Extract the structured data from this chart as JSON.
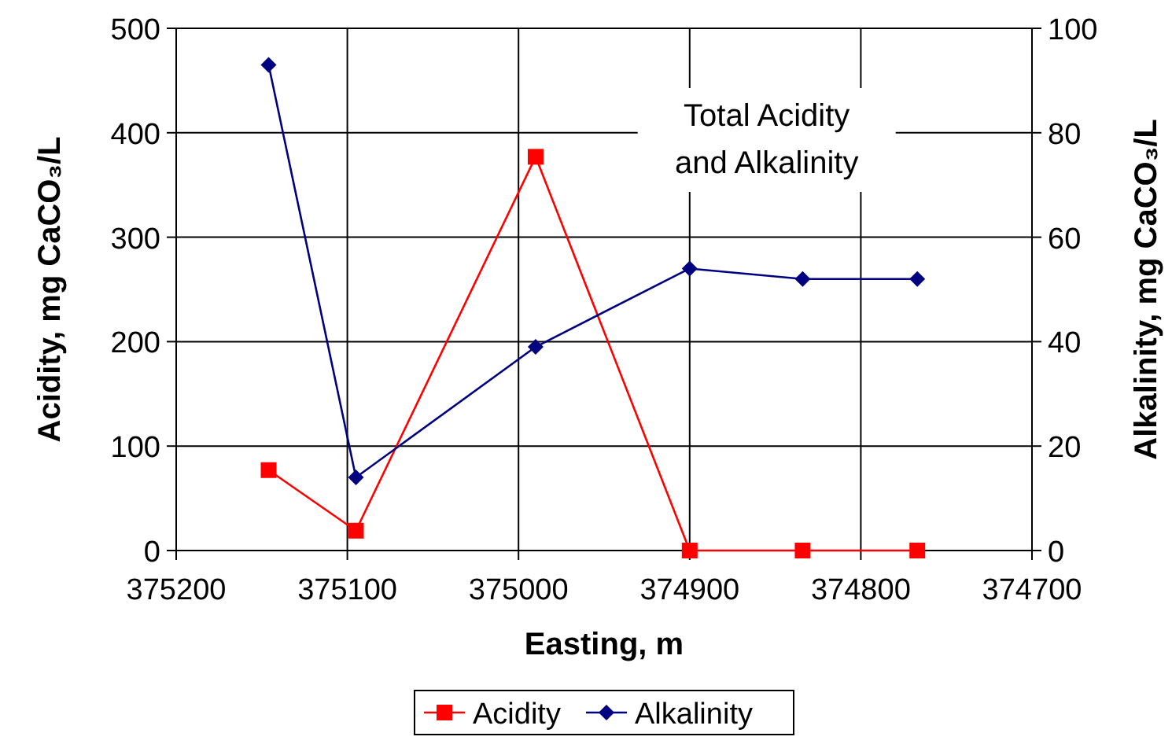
{
  "chart_data": {
    "type": "line",
    "title": "Total Acidity\nand Alkalinity",
    "xlabel": "Easting, m",
    "ylabel": "Acidity, mg CaCO₃/L",
    "y2label": "Alkalinity, mg CaCO₃/L",
    "x": [
      375146,
      375095,
      374990,
      374900,
      374834,
      374767
    ],
    "series": [
      {
        "name": "Acidity",
        "color": "#ff0000",
        "marker": "square",
        "values": [
          77,
          19,
          377,
          0,
          0,
          0
        ]
      },
      {
        "name": "Alkalinity",
        "color": "#000080",
        "marker": "diamond",
        "axis": "y2",
        "values": [
          93,
          14,
          39,
          54,
          52,
          52
        ]
      }
    ],
    "xlim": [
      375200,
      374700
    ],
    "xticks": [
      375200,
      375100,
      375000,
      374900,
      374800,
      374700
    ],
    "ylim": [
      0,
      500
    ],
    "yticks": [
      0,
      100,
      200,
      300,
      400,
      500
    ],
    "y2lim": [
      0,
      100
    ],
    "y2ticks": [
      0,
      20,
      40,
      60,
      80,
      100
    ],
    "grid": true,
    "legend": "bottom"
  }
}
